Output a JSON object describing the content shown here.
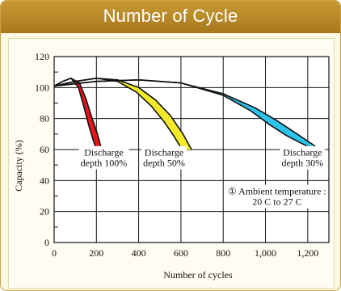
{
  "card": {
    "title": "Number of Cycle"
  },
  "chart_data": {
    "type": "line",
    "title": "",
    "xlabel": "Number of cycles",
    "ylabel": "Capacity (%)",
    "xlim": [
      0,
      1300
    ],
    "ylim": [
      0,
      120
    ],
    "grid": true,
    "x_ticks": [
      0,
      200,
      400,
      600,
      800,
      1000,
      1200
    ],
    "x_tick_labels": [
      "0",
      "200",
      "400",
      "600",
      "800",
      "1,000",
      "1,200"
    ],
    "y_ticks": [
      0,
      20,
      40,
      60,
      80,
      100,
      120
    ],
    "y_tick_labels": [
      "0",
      "20",
      "40",
      "60",
      "80",
      "100",
      "120"
    ],
    "series": [
      {
        "name": "Discharge depth 100%",
        "color": "#e8141c",
        "upper": [
          [
            0,
            101
          ],
          [
            40,
            104
          ],
          [
            80,
            106
          ],
          [
            120,
            103
          ],
          [
            150,
            93
          ],
          [
            180,
            80
          ],
          [
            205,
            70
          ],
          [
            225,
            60
          ]
        ],
        "lower": [
          [
            0,
            101
          ],
          [
            40,
            104
          ],
          [
            80,
            106
          ],
          [
            115,
            100
          ],
          [
            140,
            88
          ],
          [
            165,
            75
          ],
          [
            185,
            66
          ],
          [
            200,
            60
          ]
        ]
      },
      {
        "name": "Discharge depth 50%",
        "color": "#f2ea2a",
        "upper": [
          [
            0,
            101
          ],
          [
            100,
            104
          ],
          [
            200,
            106
          ],
          [
            300,
            105
          ],
          [
            400,
            100
          ],
          [
            480,
            92
          ],
          [
            550,
            82
          ],
          [
            610,
            70
          ],
          [
            650,
            60
          ]
        ],
        "lower": [
          [
            0,
            101
          ],
          [
            100,
            104
          ],
          [
            200,
            106
          ],
          [
            300,
            104
          ],
          [
            390,
            97
          ],
          [
            460,
            88
          ],
          [
            520,
            78
          ],
          [
            570,
            68
          ],
          [
            605,
            60
          ]
        ]
      },
      {
        "name": "Discharge depth 30%",
        "color": "#2ec3ea",
        "upper": [
          [
            0,
            101
          ],
          [
            200,
            104
          ],
          [
            400,
            105
          ],
          [
            600,
            103
          ],
          [
            800,
            96
          ],
          [
            950,
            87
          ],
          [
            1050,
            79
          ],
          [
            1150,
            70
          ],
          [
            1215,
            64
          ],
          [
            1260,
            60
          ]
        ],
        "lower": [
          [
            0,
            101
          ],
          [
            200,
            104
          ],
          [
            400,
            105
          ],
          [
            600,
            103
          ],
          [
            800,
            95
          ],
          [
            930,
            85
          ],
          [
            1020,
            76
          ],
          [
            1100,
            69
          ],
          [
            1170,
            64
          ],
          [
            1230,
            60
          ]
        ]
      }
    ],
    "annotations": [
      {
        "text": [
          "Discharge",
          "depth 100%"
        ]
      },
      {
        "text": [
          "Discharge",
          "depth 50%"
        ]
      },
      {
        "text": [
          "Discharge",
          "depth 30%"
        ]
      },
      {
        "text": [
          "① Ambient temperature :",
          "20 C to 27 C"
        ]
      }
    ]
  }
}
